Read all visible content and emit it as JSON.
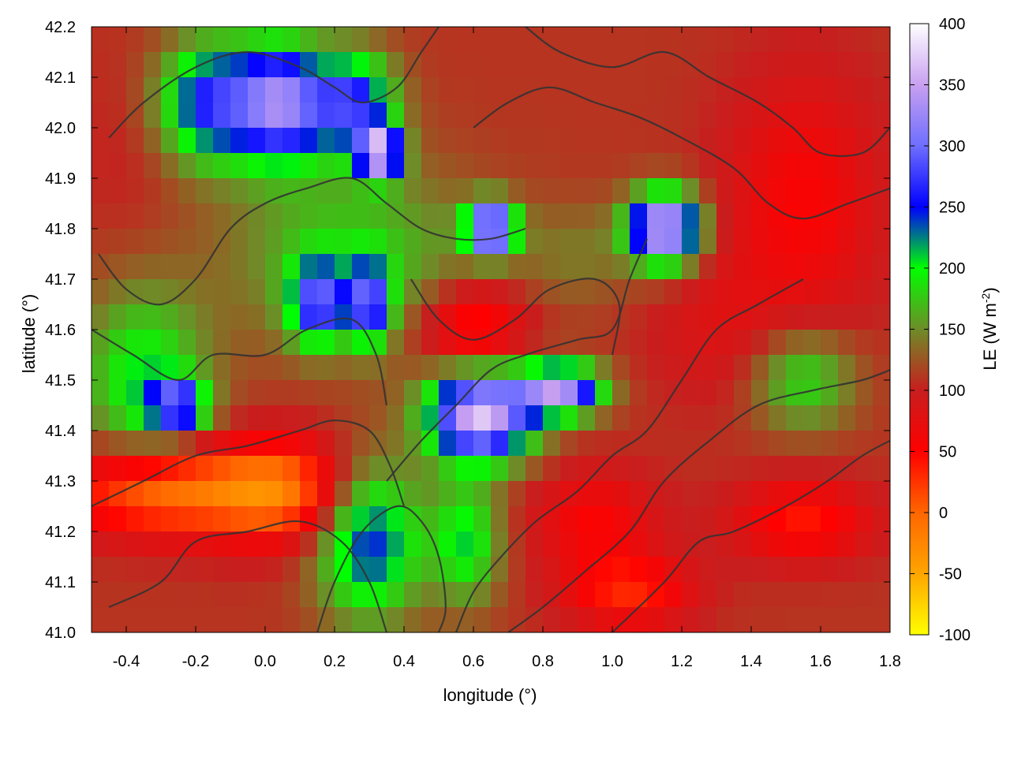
{
  "chart_data": {
    "type": "heatmap",
    "title": "",
    "xlabel": "longitude (°)",
    "ylabel": "latitude (°)",
    "xlim": [
      -0.5,
      1.8
    ],
    "ylim": [
      41.0,
      42.2
    ],
    "x_ticks": [
      -0.4,
      -0.2,
      0.0,
      0.2,
      0.4,
      0.6,
      0.8,
      1.0,
      1.2,
      1.4,
      1.6,
      1.8
    ],
    "x_tick_labels": [
      "-0.4",
      "-0.2",
      "0.0",
      "0.2",
      "0.4",
      "0.6",
      "0.8",
      "1.0",
      "1.2",
      "1.4",
      "1.6",
      "1.8"
    ],
    "y_ticks": [
      41.0,
      41.1,
      41.2,
      41.3,
      41.4,
      41.5,
      41.6,
      41.7,
      41.8,
      41.9,
      42.0,
      42.1,
      42.2
    ],
    "y_tick_labels": [
      "41.0",
      "41.1",
      "41.2",
      "41.3",
      "41.4",
      "41.5",
      "41.6",
      "41.7",
      "41.8",
      "41.9",
      "42.0",
      "42.1",
      "42.2"
    ],
    "colorbar": {
      "label": "LE (W m-2)",
      "label_main": "LE (W m",
      "label_sup": "-2",
      "label_close": ")",
      "range": [
        -100,
        400
      ],
      "ticks": [
        -100,
        -50,
        0,
        50,
        100,
        150,
        200,
        250,
        300,
        350,
        400
      ],
      "tick_labels": [
        "-100",
        "-50",
        "0",
        "50",
        "100",
        "150",
        "200",
        "250",
        "300",
        "350",
        "400"
      ],
      "stops": [
        {
          "value": -100,
          "color": "#ffff00"
        },
        {
          "value": -50,
          "color": "#ffa500"
        },
        {
          "value": 0,
          "color": "#ff6600"
        },
        {
          "value": 50,
          "color": "#ff0000"
        },
        {
          "value": 100,
          "color": "#c81e1e"
        },
        {
          "value": 150,
          "color": "#6e8c28"
        },
        {
          "value": 200,
          "color": "#00ff00"
        },
        {
          "value": 250,
          "color": "#0000ff"
        },
        {
          "value": 300,
          "color": "#6e6eff"
        },
        {
          "value": 350,
          "color": "#c8a0f0"
        },
        {
          "value": 400,
          "color": "#ffffff"
        }
      ]
    },
    "field": {
      "grid": [
        46,
        24
      ],
      "base": 110,
      "anomalies": [
        {
          "lon": -0.3,
          "lat": 41.28,
          "dlon": 0.28,
          "dlat": 0.09,
          "value": -125
        },
        {
          "lon": 0.05,
          "lat": 41.28,
          "dlon": 0.2,
          "dlat": 0.1,
          "value": -115
        },
        {
          "lon": 0.6,
          "lat": 41.6,
          "dlon": 0.15,
          "dlat": 0.09,
          "value": -85
        },
        {
          "lon": 0.95,
          "lat": 41.22,
          "dlon": 0.18,
          "dlat": 0.1,
          "value": -55
        },
        {
          "lon": 1.05,
          "lat": 41.08,
          "dlon": 0.18,
          "dlat": 0.07,
          "value": -75
        },
        {
          "lon": 1.55,
          "lat": 41.22,
          "dlon": 0.2,
          "dlat": 0.08,
          "value": -70
        },
        {
          "lon": 1.55,
          "lat": 41.85,
          "dlon": 0.22,
          "dlat": 0.25,
          "value": -55
        },
        {
          "lon": 1.3,
          "lat": 41.6,
          "dlon": 0.2,
          "dlat": 0.15,
          "value": -25
        },
        {
          "lon": -0.4,
          "lat": 41.95,
          "dlon": 0.15,
          "dlat": 0.2,
          "value": -10
        },
        {
          "lon": -0.35,
          "lat": 41.5,
          "dlon": 0.18,
          "dlat": 0.18,
          "value": 95
        },
        {
          "lon": -0.25,
          "lat": 41.45,
          "dlon": 0.08,
          "dlat": 0.05,
          "value": 150
        },
        {
          "lon": 0.25,
          "lat": 41.75,
          "dlon": 0.35,
          "dlat": 0.18,
          "value": 70
        },
        {
          "lon": -0.15,
          "lat": 42.05,
          "dlon": 0.15,
          "dlat": 0.12,
          "value": 160
        },
        {
          "lon": 0.05,
          "lat": 42.05,
          "dlon": 0.12,
          "dlat": 0.12,
          "value": 190
        },
        {
          "lon": 0.25,
          "lat": 42.05,
          "dlon": 0.12,
          "dlat": 0.1,
          "value": 160
        },
        {
          "lon": 0.33,
          "lat": 41.95,
          "dlon": 0.06,
          "dlat": 0.05,
          "value": 230
        },
        {
          "lon": 0.15,
          "lat": 41.65,
          "dlon": 0.08,
          "dlat": 0.08,
          "value": 150
        },
        {
          "lon": 0.3,
          "lat": 41.65,
          "dlon": 0.06,
          "dlat": 0.08,
          "value": 150
        },
        {
          "lon": 0.62,
          "lat": 41.43,
          "dlon": 0.15,
          "dlat": 0.09,
          "value": 260
        },
        {
          "lon": 0.85,
          "lat": 41.48,
          "dlon": 0.12,
          "dlat": 0.05,
          "value": 220
        },
        {
          "lon": 0.65,
          "lat": 41.8,
          "dlon": 0.07,
          "dlat": 0.05,
          "value": 250
        },
        {
          "lon": 1.15,
          "lat": 41.8,
          "dlon": 0.1,
          "dlat": 0.07,
          "value": 260
        },
        {
          "lon": 0.3,
          "lat": 41.18,
          "dlon": 0.15,
          "dlat": 0.15,
          "value": 140
        },
        {
          "lon": 0.58,
          "lat": 41.18,
          "dlon": 0.1,
          "dlat": 0.12,
          "value": 95
        },
        {
          "lon": 1.55,
          "lat": 41.5,
          "dlon": 0.15,
          "dlat": 0.1,
          "value": 80
        },
        {
          "lon": 0.9,
          "lat": 41.75,
          "dlon": 0.18,
          "dlat": 0.1,
          "value": 30
        }
      ]
    },
    "contours": [
      [
        [
          -0.45,
          41.05
        ],
        [
          -0.3,
          41.1
        ],
        [
          -0.2,
          41.18
        ],
        [
          -0.05,
          41.2
        ],
        [
          0.1,
          41.22
        ],
        [
          0.22,
          41.18
        ],
        [
          0.3,
          41.1
        ],
        [
          0.35,
          41.0
        ]
      ],
      [
        [
          -0.5,
          41.25
        ],
        [
          -0.35,
          41.3
        ],
        [
          -0.2,
          41.35
        ],
        [
          -0.05,
          41.37
        ],
        [
          0.1,
          41.4
        ],
        [
          0.2,
          41.42
        ],
        [
          0.3,
          41.4
        ],
        [
          0.36,
          41.33
        ],
        [
          0.4,
          41.25
        ]
      ],
      [
        [
          -0.5,
          41.6
        ],
        [
          -0.38,
          41.55
        ],
        [
          -0.25,
          41.5
        ],
        [
          -0.15,
          41.55
        ],
        [
          0.0,
          41.55
        ],
        [
          0.12,
          41.6
        ],
        [
          0.25,
          41.62
        ],
        [
          0.32,
          41.55
        ],
        [
          0.35,
          41.45
        ]
      ],
      [
        [
          -0.48,
          41.75
        ],
        [
          -0.4,
          41.68
        ],
        [
          -0.3,
          41.65
        ],
        [
          -0.2,
          41.7
        ],
        [
          -0.1,
          41.8
        ],
        [
          0.0,
          41.85
        ],
        [
          0.12,
          41.88
        ],
        [
          0.25,
          41.9
        ],
        [
          0.35,
          41.85
        ],
        [
          0.45,
          41.8
        ],
        [
          0.55,
          41.78
        ],
        [
          0.65,
          41.78
        ],
        [
          0.75,
          41.8
        ]
      ],
      [
        [
          -0.45,
          41.98
        ],
        [
          -0.35,
          42.05
        ],
        [
          -0.2,
          42.12
        ],
        [
          -0.05,
          42.15
        ],
        [
          0.1,
          42.12
        ],
        [
          0.2,
          42.08
        ],
        [
          0.28,
          42.05
        ],
        [
          0.38,
          42.08
        ],
        [
          0.45,
          42.15
        ],
        [
          0.5,
          42.2
        ]
      ],
      [
        [
          0.35,
          41.3
        ],
        [
          0.45,
          41.38
        ],
        [
          0.55,
          41.45
        ],
        [
          0.65,
          41.52
        ],
        [
          0.75,
          41.55
        ],
        [
          0.9,
          41.58
        ],
        [
          1.0,
          41.6
        ],
        [
          1.05,
          41.7
        ],
        [
          1.1,
          41.78
        ]
      ],
      [
        [
          0.55,
          41.0
        ],
        [
          0.6,
          41.08
        ],
        [
          0.68,
          41.15
        ],
        [
          0.78,
          41.22
        ],
        [
          0.9,
          41.28
        ],
        [
          1.0,
          41.35
        ],
        [
          1.1,
          41.4
        ],
        [
          1.2,
          41.5
        ],
        [
          1.3,
          41.6
        ],
        [
          1.42,
          41.65
        ],
        [
          1.55,
          41.7
        ]
      ],
      [
        [
          0.7,
          41.0
        ],
        [
          0.8,
          41.05
        ],
        [
          0.92,
          41.12
        ],
        [
          1.05,
          41.2
        ],
        [
          1.15,
          41.3
        ],
        [
          1.28,
          41.38
        ],
        [
          1.42,
          41.45
        ],
        [
          1.58,
          41.48
        ],
        [
          1.72,
          41.5
        ],
        [
          1.8,
          41.52
        ]
      ],
      [
        [
          1.0,
          41.0
        ],
        [
          1.15,
          41.1
        ],
        [
          1.25,
          41.18
        ],
        [
          1.35,
          41.2
        ],
        [
          1.5,
          41.25
        ],
        [
          1.62,
          41.3
        ],
        [
          1.72,
          41.35
        ],
        [
          1.8,
          41.38
        ]
      ],
      [
        [
          0.6,
          42.0
        ],
        [
          0.7,
          42.05
        ],
        [
          0.82,
          42.08
        ],
        [
          0.95,
          42.05
        ],
        [
          1.08,
          42.02
        ],
        [
          1.2,
          41.98
        ],
        [
          1.35,
          41.92
        ],
        [
          1.45,
          41.85
        ],
        [
          1.55,
          41.82
        ],
        [
          1.68,
          41.85
        ],
        [
          1.8,
          41.88
        ]
      ],
      [
        [
          0.75,
          42.2
        ],
        [
          0.85,
          42.15
        ],
        [
          1.0,
          42.12
        ],
        [
          1.15,
          42.15
        ],
        [
          1.28,
          42.1
        ],
        [
          1.42,
          42.05
        ],
        [
          1.52,
          42.0
        ],
        [
          1.6,
          41.95
        ],
        [
          1.72,
          41.95
        ],
        [
          1.8,
          42.0
        ]
      ],
      [
        [
          0.42,
          41.7
        ],
        [
          0.5,
          41.62
        ],
        [
          0.6,
          41.58
        ],
        [
          0.72,
          41.62
        ],
        [
          0.82,
          41.68
        ],
        [
          0.95,
          41.7
        ],
        [
          1.02,
          41.65
        ],
        [
          1.0,
          41.55
        ]
      ],
      [
        [
          0.15,
          41.0
        ],
        [
          0.2,
          41.1
        ],
        [
          0.28,
          41.2
        ],
        [
          0.38,
          41.25
        ],
        [
          0.45,
          41.22
        ],
        [
          0.5,
          41.15
        ],
        [
          0.52,
          41.05
        ],
        [
          0.5,
          41.0
        ]
      ]
    ]
  }
}
